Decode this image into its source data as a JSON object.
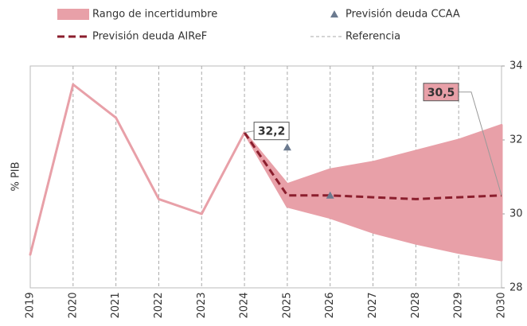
{
  "chart_data": {
    "type": "line",
    "y_label": "% PIB",
    "x": [
      2019,
      2020,
      2021,
      2022,
      2023,
      2024,
      2025,
      2026,
      2027,
      2028,
      2029,
      2030
    ],
    "xlim": [
      2019,
      2030
    ],
    "ylim": [
      28,
      34
    ],
    "yticks": [
      28,
      30,
      32,
      34
    ],
    "band": {
      "name": "Rango de incertidumbre",
      "color": "#e8a0a8",
      "upper": [
        28.9,
        33.5,
        32.6,
        30.4,
        30.0,
        32.2,
        30.8,
        31.2,
        31.4,
        31.7,
        32.0,
        32.4
      ],
      "lower": [
        28.9,
        33.5,
        32.6,
        30.4,
        30.0,
        32.2,
        30.2,
        29.9,
        29.5,
        29.2,
        28.95,
        28.75
      ]
    },
    "series": [
      {
        "name": "Previsión deuda AIReF",
        "color": "#8b1e2d",
        "values": [
          null,
          null,
          null,
          null,
          null,
          32.2,
          30.5,
          30.5,
          30.45,
          30.4,
          30.45,
          30.5
        ],
        "value_labels": [
          null,
          null,
          null,
          null,
          null,
          "32,2",
          null,
          null,
          null,
          null,
          null,
          "30,5"
        ]
      }
    ],
    "markers": {
      "name": "Previsión deuda CCAA",
      "color": "#6b7a8f",
      "x": [
        2025,
        2026
      ],
      "values": [
        31.8,
        30.5
      ]
    },
    "grid": {
      "name": "Referencia",
      "color": "#aaa"
    }
  }
}
